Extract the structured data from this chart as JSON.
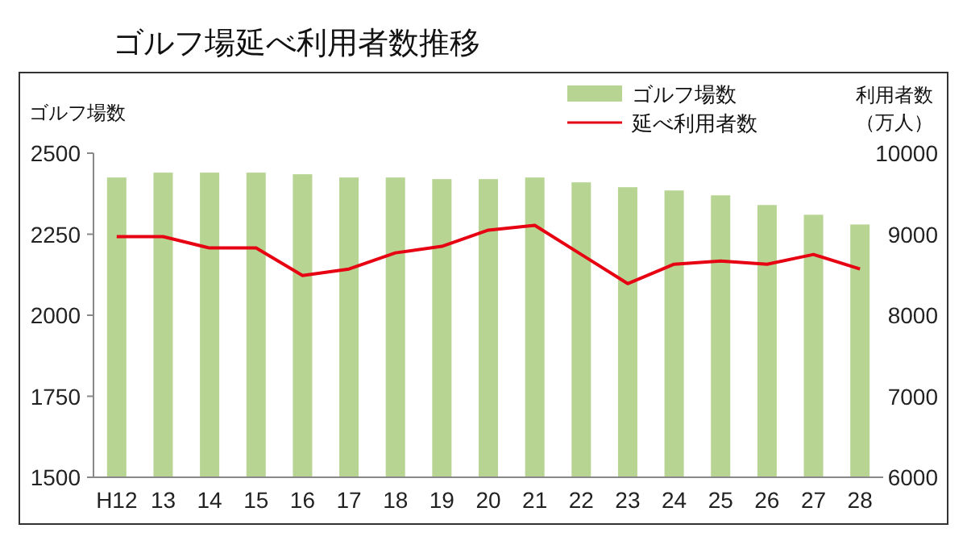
{
  "chart_data": {
    "type": "bar",
    "title": "ゴルフ場延べ利用者数推移",
    "ylabel": "ゴルフ場数",
    "y2label": "利用者数（万人）",
    "categories": [
      "H12",
      "13",
      "14",
      "15",
      "16",
      "17",
      "18",
      "19",
      "20",
      "21",
      "22",
      "23",
      "24",
      "25",
      "26",
      "27",
      "28"
    ],
    "series": [
      {
        "name": "ゴルフ場数",
        "color": "#b7d492",
        "values": [
          2425,
          2440,
          2440,
          2440,
          2435,
          2425,
          2425,
          2420,
          2420,
          2425,
          2410,
          2395,
          2385,
          2370,
          2340,
          2310,
          2280
        ]
      },
      {
        "name": "延べ利用者数",
        "type": "line",
        "axis": "y2",
        "color": "#e60012",
        "values": [
          8970,
          8970,
          8830,
          8830,
          8490,
          8570,
          8770,
          8850,
          9050,
          9110,
          8750,
          8390,
          8630,
          8670,
          8630,
          8750,
          8570
        ]
      }
    ],
    "ylim": [
      1500,
      2500
    ],
    "yticks": [
      1500,
      1750,
      2000,
      2250,
      2500
    ],
    "y2lim": [
      6000,
      10000
    ],
    "y2ticks": [
      6000,
      7000,
      8000,
      9000,
      10000
    ],
    "legend": "top right",
    "grid": false
  }
}
